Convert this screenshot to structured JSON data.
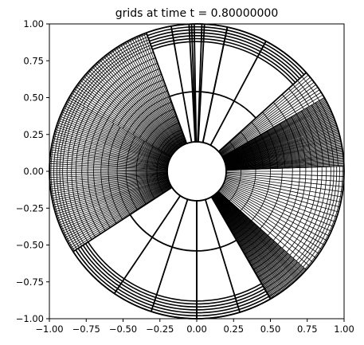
{
  "chart_data": {
    "type": "mesh",
    "title": "grids at time t =      0.80000000",
    "xlabel": "",
    "ylabel": "",
    "xlim": [
      -1.0,
      1.0
    ],
    "ylim": [
      -1.0,
      1.0
    ],
    "xticks": [
      -1.0,
      -0.75,
      -0.5,
      -0.25,
      0.0,
      0.25,
      0.5,
      0.75,
      1.0
    ],
    "yticks": [
      -1.0,
      -0.75,
      -0.5,
      -0.25,
      0.0,
      0.25,
      0.5,
      0.75,
      1.0
    ],
    "xtick_labels": [
      "−1.00",
      "−0.75",
      "−0.50",
      "−0.25",
      "0.00",
      "0.25",
      "0.50",
      "0.75",
      "1.00"
    ],
    "ytick_labels": [
      "−1.00",
      "−0.75",
      "−0.50",
      "−0.25",
      "0.00",
      "0.25",
      "0.50",
      "0.75",
      "1.00"
    ],
    "grid": false,
    "inner_radius": 0.2,
    "outer_radius": 1.0,
    "line_color": "#000000",
    "sectors": [
      {
        "theta_deg": [
          78,
          110
        ],
        "radii": [
          0.2,
          0.54,
          0.88,
          0.9,
          0.92,
          0.94,
          0.96,
          0.98,
          1.0
        ],
        "spokes_deg": [
          78,
          87,
          88,
          91,
          92,
          93,
          100,
          110
        ]
      },
      {
        "theta_deg": [
          110,
          150
        ],
        "radii": [
          0.2,
          0.22,
          0.24,
          0.26,
          0.28,
          0.3,
          0.35,
          0.4,
          0.45,
          0.5,
          0.54,
          0.58,
          0.62,
          0.66,
          0.7,
          0.74,
          0.78,
          0.82,
          0.86,
          0.89,
          0.91,
          0.93,
          0.95,
          0.97,
          0.99,
          1.0
        ],
        "spoke_count": 40
      },
      {
        "theta_deg": [
          150,
          213
        ],
        "radii": [
          0.2,
          0.27,
          0.34,
          0.41,
          0.48,
          0.54,
          0.6,
          0.65,
          0.7,
          0.74,
          0.78,
          0.82,
          0.85,
          0.88,
          0.91,
          0.93,
          0.95,
          0.97,
          0.99,
          1.0
        ],
        "spoke_count": 70
      },
      {
        "theta_deg": [
          213,
          270
        ],
        "radii": [
          0.2,
          0.54,
          0.88,
          0.9,
          0.92,
          0.94,
          0.96,
          0.98,
          1.0
        ],
        "spokes_deg": [
          213,
          236,
          252,
          270
        ]
      },
      {
        "theta_deg": [
          270,
          300
        ],
        "radii": [
          0.2,
          0.54,
          0.88,
          0.9,
          0.92,
          0.94,
          0.96,
          0.98,
          1.0
        ],
        "spokes_deg": [
          270,
          287,
          300
        ]
      },
      {
        "theta_deg": [
          300,
          318
        ],
        "radii": [
          0.2,
          0.23,
          0.26,
          0.29,
          0.32,
          0.35,
          0.38,
          0.41,
          0.44,
          0.47,
          0.5,
          0.53,
          0.56,
          0.59,
          0.62,
          0.65,
          0.68,
          0.71,
          0.74,
          0.77,
          0.8,
          0.83,
          0.86,
          0.89,
          0.92,
          0.95,
          0.98,
          1.0
        ],
        "spoke_count": 40
      },
      {
        "theta_deg": [
          318,
          362
        ],
        "radii": [
          0.2,
          0.3,
          0.4,
          0.5,
          0.58,
          0.65,
          0.7,
          0.74,
          0.78,
          0.82,
          0.85,
          0.88,
          0.91,
          0.93,
          0.95,
          0.97,
          0.99,
          1.0
        ],
        "spoke_count": 22
      },
      {
        "theta_deg": [
          2,
          30
        ],
        "radii": [
          0.2,
          0.25,
          0.3,
          0.35,
          0.4,
          0.45,
          0.5,
          0.55,
          0.6,
          0.65,
          0.7,
          0.74,
          0.78,
          0.82,
          0.86,
          0.9,
          0.93,
          0.96,
          1.0
        ],
        "spoke_count": 60
      },
      {
        "theta_deg": [
          30,
          42
        ],
        "radii": [
          0.2,
          0.3,
          0.4,
          0.5,
          0.6,
          0.7,
          0.78,
          0.84,
          0.88,
          0.92,
          0.96,
          1.0
        ],
        "spoke_count": 10
      },
      {
        "theta_deg": [
          42,
          78
        ],
        "radii": [
          0.2,
          0.54,
          0.88,
          0.9,
          0.92,
          0.94,
          0.96,
          0.98,
          1.0
        ],
        "spokes_deg": [
          42,
          62,
          78
        ]
      }
    ]
  }
}
